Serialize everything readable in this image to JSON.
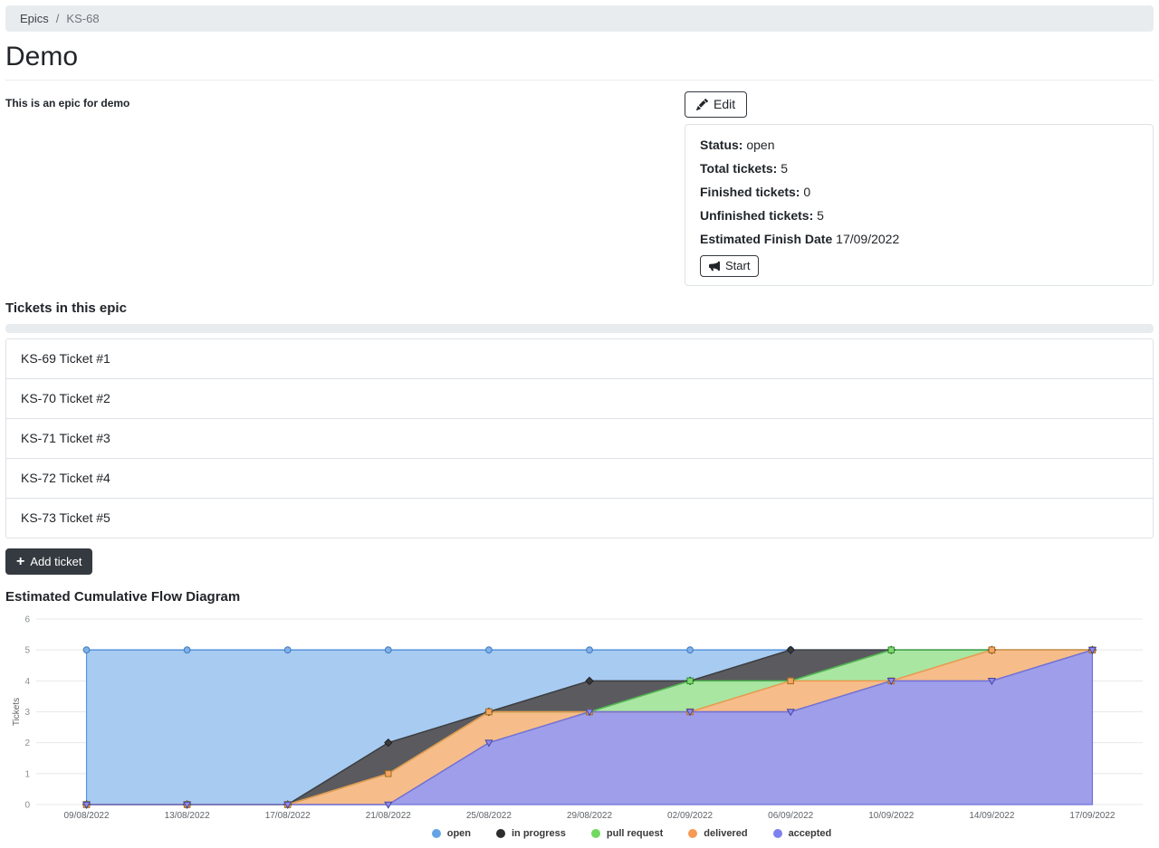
{
  "breadcrumb": {
    "separator": "/",
    "items": [
      {
        "label": "Epics"
      },
      {
        "label": "KS-68"
      }
    ]
  },
  "header": {
    "title": "Demo",
    "description": "This is an epic for demo"
  },
  "actions": {
    "edit_label": "Edit",
    "start_label": "Start",
    "add_ticket_icon": "+",
    "add_ticket_label": "Add ticket"
  },
  "epic_info": {
    "status_label": "Status:",
    "status_value": "open",
    "total_label": "Total tickets:",
    "total_value": "5",
    "finished_label": "Finished tickets:",
    "finished_value": "0",
    "unfinished_label": "Unfinished tickets:",
    "unfinished_value": "5",
    "finish_date_label": "Estimated Finish Date",
    "finish_date_value": "17/09/2022"
  },
  "tickets_section": {
    "heading": "Tickets in this epic",
    "tickets": [
      "KS-69 Ticket #1",
      "KS-70 Ticket #2",
      "KS-71 Ticket #3",
      "KS-72 Ticket #4",
      "KS-73 Ticket #5"
    ]
  },
  "chart_section": {
    "heading": "Estimated Cumulative Flow Diagram"
  },
  "colors": {
    "dark": "#343a40",
    "breadcrumb_bg": "#e9ecef",
    "grid": "#e8e8e8",
    "axis_text": "#8a8f94",
    "x_label_text": "#5f6368"
  },
  "chart_data": {
    "type": "area",
    "stacked": true,
    "title": "Estimated Cumulative Flow Diagram",
    "xlabel": "",
    "ylabel": "Tickets",
    "ylim": [
      0,
      6
    ],
    "yticks": [
      0,
      1,
      2,
      3,
      4,
      5,
      6
    ],
    "grid": "horizontal",
    "legend_position": "bottom",
    "x": [
      "09/08/2022",
      "13/08/2022",
      "17/08/2022",
      "21/08/2022",
      "25/08/2022",
      "29/08/2022",
      "02/09/2022",
      "06/09/2022",
      "10/09/2022",
      "14/09/2022",
      "17/09/2022"
    ],
    "series": [
      {
        "name": "open",
        "values": [
          5,
          5,
          5,
          3,
          2,
          1,
          1,
          0,
          0,
          0,
          0
        ],
        "marker": "circle",
        "line": "#5b97de",
        "fill": "#a7cbf1",
        "dot": "#64a3e6",
        "marker_fill": "#7fb0e8",
        "marker_stroke": "#3f77bd"
      },
      {
        "name": "in progress",
        "values": [
          0,
          0,
          0,
          1,
          0,
          1,
          0,
          1,
          0,
          0,
          0
        ],
        "marker": "diamond",
        "line": "#3d3d3d",
        "fill": "#5b5b5f",
        "dot": "#2e2e2e",
        "marker_fill": "#3a3a3a",
        "marker_stroke": "#1e1e1e"
      },
      {
        "name": "pull request",
        "values": [
          0,
          0,
          0,
          0,
          0,
          0,
          1,
          0,
          1,
          0,
          0
        ],
        "marker": "square",
        "line": "#52b852",
        "fill": "#a9e6a2",
        "dot": "#70d95e",
        "marker_fill": "#7ed96e",
        "marker_stroke": "#2f8f2f"
      },
      {
        "name": "delivered",
        "values": [
          0,
          0,
          0,
          1,
          1,
          0,
          0,
          1,
          0,
          1,
          0
        ],
        "marker": "square",
        "line": "#ec9a52",
        "fill": "#f6bd8a",
        "dot": "#f79a54",
        "marker_fill": "#f2a765",
        "marker_stroke": "#b06a20"
      },
      {
        "name": "accepted",
        "values": [
          0,
          0,
          0,
          0,
          2,
          3,
          3,
          3,
          4,
          4,
          5
        ],
        "marker": "triangle-down",
        "line": "#6f71d9",
        "fill": "#9f9eea",
        "dot": "#7e82ef",
        "marker_fill": "#8d8beb",
        "marker_stroke": "#4646a0"
      }
    ],
    "stack_order_bottom_to_top": [
      "accepted",
      "delivered",
      "pull request",
      "in progress",
      "open"
    ],
    "draw_order": [
      "open",
      "in progress",
      "pull request",
      "delivered",
      "accepted"
    ]
  }
}
